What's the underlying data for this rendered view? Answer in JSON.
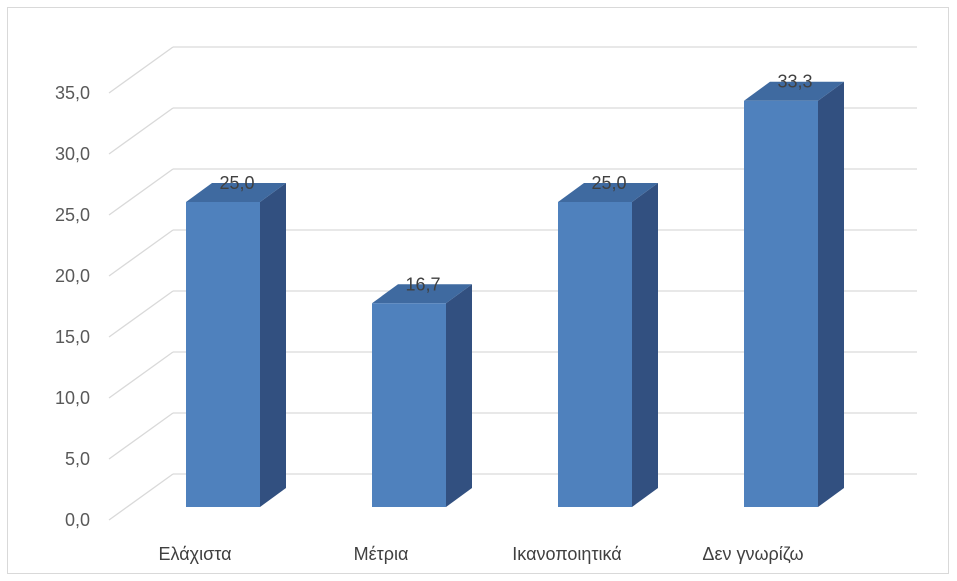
{
  "chart_data": {
    "type": "bar",
    "style": "3d-column",
    "categories": [
      "Ελάχιστα",
      "Μέτρια",
      "Ικανοποιητικά",
      "Δεν γνωρίζω"
    ],
    "values": [
      25.0,
      16.7,
      25.0,
      33.3
    ],
    "data_labels": [
      "25,0",
      "16,7",
      "25,0",
      "33,3"
    ],
    "title": "",
    "xlabel": "",
    "ylabel": "",
    "ylim": [
      0,
      35
    ],
    "ytick_step": 5,
    "yticks": [
      "0,0",
      "5,0",
      "10,0",
      "15,0",
      "20,0",
      "25,0",
      "30,0",
      "35,0"
    ],
    "grid": true,
    "legend": "none",
    "colors": {
      "bar_front": "#4f81bd",
      "bar_side": "#325080",
      "bar_top": "#3f6aa0",
      "grid": "#d9d9d9",
      "frame": "#d9d9d9"
    }
  }
}
